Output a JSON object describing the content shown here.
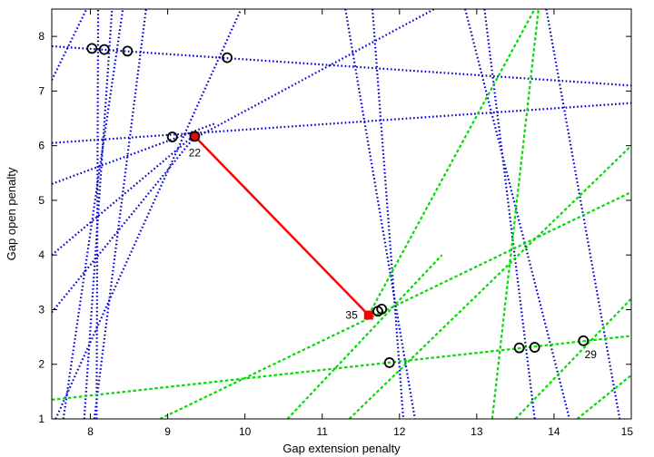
{
  "chart_data": {
    "type": "line",
    "title": "",
    "xlabel": "Gap extension penalty",
    "ylabel": "Gap open penalty",
    "xlim": [
      7.5,
      15
    ],
    "ylim": [
      1,
      8.5
    ],
    "xticks": [
      "8",
      "9",
      "10",
      "11",
      "12",
      "13",
      "14",
      "15"
    ],
    "yticks": [
      "1",
      "2",
      "3",
      "4",
      "5",
      "6",
      "7",
      "8"
    ],
    "grid": false,
    "legend": "none",
    "colors": {
      "blue": "#0000cc",
      "green": "#00dd00",
      "red": "#ff0000",
      "black": "#000000"
    },
    "blue_lines": [
      [
        [
          7.5,
          7.82
        ],
        [
          15,
          7.1
        ]
      ],
      [
        [
          7.5,
          6.05
        ],
        [
          15,
          6.78
        ]
      ],
      [
        [
          7.5,
          5.3
        ],
        [
          9.6,
          6.4
        ]
      ],
      [
        [
          7.5,
          4.0
        ],
        [
          9.35,
          6.2
        ]
      ],
      [
        [
          7.5,
          2.95
        ],
        [
          9.4,
          6.25
        ]
      ],
      [
        [
          7.5,
          7.2
        ],
        [
          7.95,
          8.5
        ]
      ],
      [
        [
          7.65,
          1.0
        ],
        [
          8.42,
          8.5
        ]
      ],
      [
        [
          7.92,
          1.0
        ],
        [
          8.28,
          8.5
        ]
      ],
      [
        [
          8.05,
          1.0
        ],
        [
          8.72,
          8.5
        ]
      ],
      [
        [
          8.08,
          1.0
        ],
        [
          8.1,
          8.5
        ]
      ],
      [
        [
          7.55,
          1.0
        ],
        [
          9.95,
          8.5
        ]
      ],
      [
        [
          9.3,
          6.1
        ],
        [
          12.45,
          8.5
        ]
      ],
      [
        [
          11.65,
          8.5
        ],
        [
          12.05,
          1.0
        ]
      ],
      [
        [
          11.3,
          8.5
        ],
        [
          12.2,
          1.0
        ]
      ],
      [
        [
          12.85,
          8.5
        ],
        [
          14.2,
          1.0
        ]
      ],
      [
        [
          13.1,
          8.5
        ],
        [
          13.75,
          1.0
        ]
      ],
      [
        [
          13.9,
          8.5
        ],
        [
          14.85,
          1.0
        ]
      ]
    ],
    "green_lines": [
      [
        [
          7.5,
          1.35
        ],
        [
          15,
          2.52
        ]
      ],
      [
        [
          8.9,
          1.0
        ],
        [
          15,
          5.15
        ]
      ],
      [
        [
          10.55,
          1.0
        ],
        [
          12.55,
          4.0
        ]
      ],
      [
        [
          11.35,
          1.0
        ],
        [
          15,
          6.0
        ]
      ],
      [
        [
          11.6,
          2.9
        ],
        [
          13.75,
          8.5
        ]
      ],
      [
        [
          13.2,
          1.0
        ],
        [
          13.8,
          8.5
        ]
      ],
      [
        [
          13.5,
          1.0
        ],
        [
          15,
          3.2
        ]
      ],
      [
        [
          14.3,
          1.0
        ],
        [
          15,
          1.8
        ]
      ]
    ],
    "circle_points": [
      [
        8.02,
        7.78
      ],
      [
        8.18,
        7.76
      ],
      [
        8.48,
        7.73
      ],
      [
        9.77,
        7.61
      ],
      [
        9.06,
        6.16
      ],
      [
        9.35,
        6.17
      ],
      [
        11.72,
        2.97
      ],
      [
        11.77,
        3.01
      ],
      [
        11.87,
        2.03
      ],
      [
        13.55,
        2.3
      ],
      [
        13.75,
        2.31
      ],
      [
        14.38,
        2.43
      ]
    ],
    "red_path": [
      [
        9.35,
        6.17
      ],
      [
        11.6,
        2.9
      ]
    ],
    "labeled_points": [
      {
        "label": "22",
        "x": 9.35,
        "y": 6.17
      },
      {
        "label": "35",
        "x": 11.6,
        "y": 2.9
      },
      {
        "label": "29",
        "x": 14.38,
        "y": 2.43
      }
    ]
  }
}
